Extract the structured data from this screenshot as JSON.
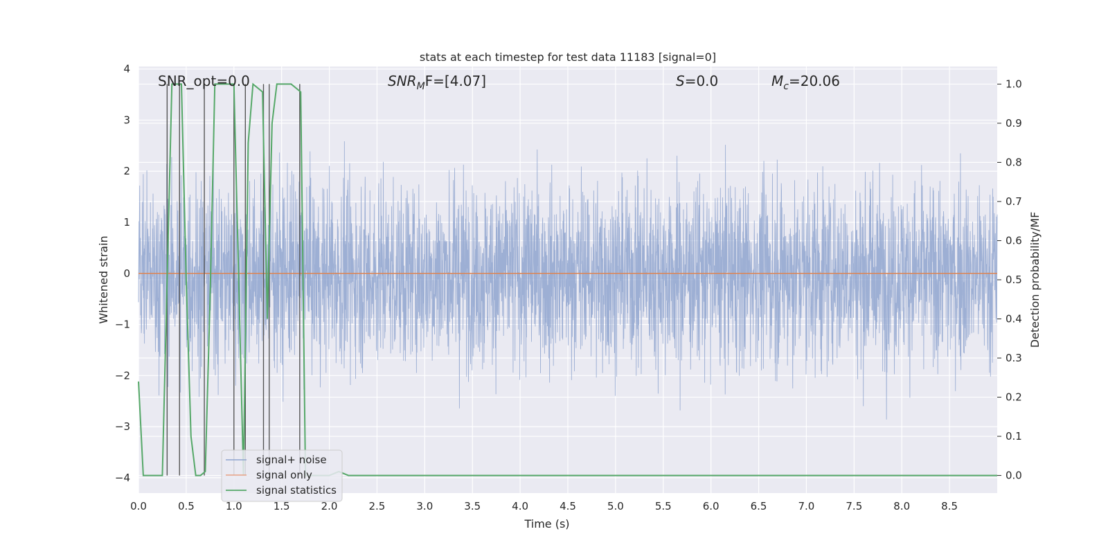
{
  "chart_data": {
    "type": "line",
    "title": "stats at each timestep for test data 11183 [signal=0]",
    "xlabel": "Time (s)",
    "ylabel": "Whitened strain",
    "y2label": "Detection probability/MF",
    "xlim": [
      0.0,
      9.0
    ],
    "ylim": [
      -4.3,
      4.05
    ],
    "y2lim": [
      -0.045,
      1.045
    ],
    "x_ticks": [
      "0.0",
      "0.5",
      "1.0",
      "1.5",
      "2.0",
      "2.5",
      "3.0",
      "3.5",
      "4.0",
      "4.5",
      "5.0",
      "5.5",
      "6.0",
      "6.5",
      "7.0",
      "7.5",
      "8.0",
      "8.5"
    ],
    "y_ticks": [
      "4",
      "3",
      "2",
      "1",
      "0",
      "−1",
      "−2",
      "−3",
      "−4"
    ],
    "y2_ticks": [
      "1.0",
      "0.9",
      "0.8",
      "0.7",
      "0.6",
      "0.5",
      "0.4",
      "0.3",
      "0.2",
      "0.1",
      "0.0"
    ],
    "grid": true,
    "legend_position": "lower-left",
    "annotations": {
      "snr_opt": "SNR_opt=0.0",
      "snr_mf_sym": "SNR",
      "snr_mf_sub": "M",
      "snr_mf_rest": "F=[4.07]",
      "s_sym": "S",
      "s_rest": "=0.0",
      "mc_sym": "M",
      "mc_sub": "c",
      "mc_rest": "=20.06"
    },
    "series": [
      {
        "name": "signal+ noise",
        "color": "#8fa5cf",
        "envelope": {
          "typical_abs": 1.7,
          "peak_max": 3.65,
          "peak_min": -4.05
        }
      },
      {
        "name": "signal only",
        "color": "#dd8452",
        "y": [
          [
            0.0,
            0.0
          ],
          [
            9.0,
            0.0
          ]
        ]
      },
      {
        "name": "signal statistics",
        "color": "#55a868",
        "axis": "right",
        "points": [
          [
            0.0,
            0.24
          ],
          [
            0.05,
            0.0
          ],
          [
            0.25,
            0.0
          ],
          [
            0.3,
            0.5
          ],
          [
            0.35,
            1.0
          ],
          [
            0.4,
            1.0
          ],
          [
            0.45,
            1.0
          ],
          [
            0.5,
            0.5
          ],
          [
            0.55,
            0.1
          ],
          [
            0.6,
            0.0
          ],
          [
            0.65,
            0.0
          ],
          [
            0.7,
            0.01
          ],
          [
            0.75,
            0.45
          ],
          [
            0.8,
            1.0
          ],
          [
            0.85,
            1.0
          ],
          [
            0.9,
            1.0
          ],
          [
            1.0,
            1.0
          ],
          [
            1.05,
            0.5
          ],
          [
            1.1,
            0.0
          ],
          [
            1.15,
            0.85
          ],
          [
            1.2,
            1.0
          ],
          [
            1.3,
            0.98
          ],
          [
            1.35,
            0.4
          ],
          [
            1.4,
            0.9
          ],
          [
            1.45,
            1.0
          ],
          [
            1.6,
            1.0
          ],
          [
            1.7,
            0.98
          ],
          [
            1.75,
            0.0
          ],
          [
            1.8,
            0.0
          ],
          [
            2.0,
            0.0
          ],
          [
            2.1,
            0.01
          ],
          [
            2.2,
            0.0
          ],
          [
            9.0,
            0.0
          ]
        ]
      }
    ],
    "vertical_markers_x": [
      0.3,
      0.43,
      0.69,
      1.0,
      1.12,
      1.31,
      1.37,
      1.69
    ]
  }
}
